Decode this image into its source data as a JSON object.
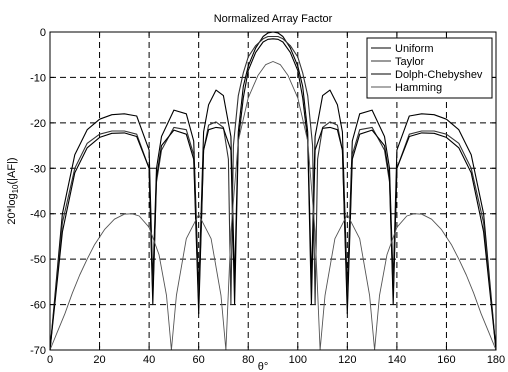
{
  "chart_data": {
    "type": "line",
    "title": "Normalized Array Factor",
    "xlabel": "θ°",
    "ylabel_main": "20*log",
    "ylabel_sub": "10",
    "ylabel_tail": "(|AF|)",
    "xlim": [
      0,
      180
    ],
    "ylim": [
      -70,
      0
    ],
    "xticks": [
      0,
      20,
      40,
      60,
      80,
      100,
      120,
      140,
      160,
      180
    ],
    "yticks": [
      0,
      -10,
      -20,
      -30,
      -40,
      -50,
      -60,
      -70
    ],
    "grid": true,
    "grid_style": "dashed",
    "legend_position": "top-right",
    "series": [
      {
        "name": "Uniform",
        "color": "#000000",
        "x": [
          0,
          5,
          10,
          15,
          20,
          25,
          30,
          35,
          40,
          41.5,
          43,
          45,
          50,
          55,
          58,
          60,
          62,
          64,
          67,
          70,
          73,
          74.5,
          76,
          78,
          80,
          83,
          86,
          88,
          90,
          92,
          94,
          97,
          100,
          102,
          104,
          105.5,
          107,
          110,
          113,
          116,
          118,
          120,
          122,
          125,
          130,
          135,
          137,
          138.5,
          140,
          145,
          150,
          155,
          160,
          165,
          170,
          175,
          180
        ],
        "y": [
          -70,
          -40,
          -27,
          -21.5,
          -19.2,
          -18.2,
          -18,
          -18.5,
          -26,
          -55,
          -30,
          -23,
          -17.2,
          -18,
          -24,
          -57,
          -22,
          -16,
          -12.8,
          -14,
          -23,
          -55,
          -22,
          -12,
          -7.5,
          -3.5,
          -1,
          -0.2,
          0,
          -0.2,
          -1,
          -3.5,
          -7.5,
          -12,
          -22,
          -55,
          -23,
          -14,
          -12.8,
          -16,
          -22,
          -57,
          -24,
          -18,
          -17.2,
          -23,
          -30,
          -55,
          -26,
          -18.5,
          -18,
          -18.2,
          -19.2,
          -21.5,
          -27,
          -40,
          -70
        ]
      },
      {
        "name": "Taylor",
        "color": "#333333",
        "x": [
          0,
          5,
          10,
          15,
          20,
          25,
          30,
          35,
          40,
          41.5,
          43,
          45,
          50,
          55,
          58,
          60,
          62,
          64,
          67,
          70,
          72,
          73,
          74,
          76,
          78,
          80,
          83,
          86,
          88,
          90,
          92,
          94,
          97,
          100,
          102,
          104,
          106,
          107,
          108,
          110,
          113,
          116,
          118,
          120,
          122,
          125,
          130,
          135,
          137,
          138.5,
          140,
          145,
          150,
          155,
          160,
          165,
          170,
          175,
          180
        ],
        "y": [
          -70,
          -42,
          -30,
          -24.5,
          -22.5,
          -21.8,
          -21.8,
          -22.5,
          -30,
          -58,
          -33,
          -26,
          -21,
          -21.5,
          -27,
          -60,
          -26,
          -20.5,
          -19.8,
          -21,
          -28,
          -60,
          -25,
          -14,
          -9,
          -5.5,
          -3,
          -1.5,
          -1,
          -1,
          -1,
          -1.5,
          -3,
          -5.5,
          -9,
          -14,
          -25,
          -60,
          -28,
          -21,
          -19.8,
          -20.5,
          -26,
          -60,
          -27,
          -21.5,
          -21,
          -26,
          -33,
          -58,
          -30,
          -22.5,
          -21.8,
          -21.8,
          -22.5,
          -24.5,
          -30,
          -42,
          -70
        ]
      },
      {
        "name": "Dolph-Chebyshev",
        "color": "#000000",
        "x": [
          0,
          5,
          10,
          15,
          20,
          25,
          30,
          35,
          40,
          41.5,
          43,
          45,
          50,
          55,
          58,
          60,
          62,
          64,
          67,
          70,
          73,
          74.5,
          76,
          78,
          80,
          83,
          86,
          88,
          90,
          92,
          94,
          97,
          100,
          102,
          104,
          105.5,
          107,
          110,
          113,
          116,
          118,
          120,
          122,
          125,
          130,
          135,
          137,
          138.5,
          140,
          145,
          150,
          155,
          160,
          165,
          170,
          175,
          180
        ],
        "y": [
          -70,
          -44,
          -31,
          -25.5,
          -23.2,
          -22.3,
          -22.2,
          -23,
          -30,
          -60,
          -32,
          -25,
          -21.6,
          -22.5,
          -28,
          -62,
          -26,
          -21.5,
          -21,
          -21.2,
          -26,
          -60,
          -24,
          -14.5,
          -8.5,
          -4.5,
          -2.2,
          -1.6,
          -1.5,
          -1.6,
          -2.2,
          -4.5,
          -8.5,
          -14.5,
          -24,
          -60,
          -26,
          -21.2,
          -21,
          -21.5,
          -26,
          -62,
          -28,
          -22.5,
          -21.6,
          -25,
          -32,
          -60,
          -30,
          -23,
          -22.2,
          -22.3,
          -23.2,
          -25.5,
          -31,
          -44,
          -70
        ]
      },
      {
        "name": "Hamming",
        "color": "#555555",
        "x": [
          0,
          3,
          6,
          9,
          12,
          15,
          18,
          22,
          26,
          30,
          33,
          36,
          40,
          44,
          47,
          49,
          51,
          55,
          60,
          65,
          69,
          71,
          73,
          76,
          80,
          84,
          87,
          90,
          93,
          96,
          100,
          104,
          107,
          109,
          111,
          115,
          120,
          125,
          129,
          131,
          133,
          136,
          140,
          144,
          147,
          150,
          154,
          158,
          162,
          165,
          168,
          171,
          174,
          177,
          180
        ],
        "y": [
          -70,
          -66,
          -62,
          -57.5,
          -53.5,
          -50,
          -46.8,
          -43.5,
          -41.2,
          -40.1,
          -40,
          -40.5,
          -43,
          -49,
          -58,
          -70,
          -58,
          -45.5,
          -40.2,
          -45.5,
          -58,
          -70,
          -44,
          -24,
          -14.5,
          -9.5,
          -7.2,
          -6.5,
          -7.2,
          -9.5,
          -14.5,
          -24,
          -44,
          -70,
          -58,
          -45.5,
          -40.2,
          -45.5,
          -58,
          -70,
          -58,
          -49,
          -43,
          -40.5,
          -40,
          -40.1,
          -41.2,
          -43.5,
          -46.8,
          -50,
          -53.5,
          -57.5,
          -62,
          -66,
          -70
        ]
      }
    ]
  }
}
